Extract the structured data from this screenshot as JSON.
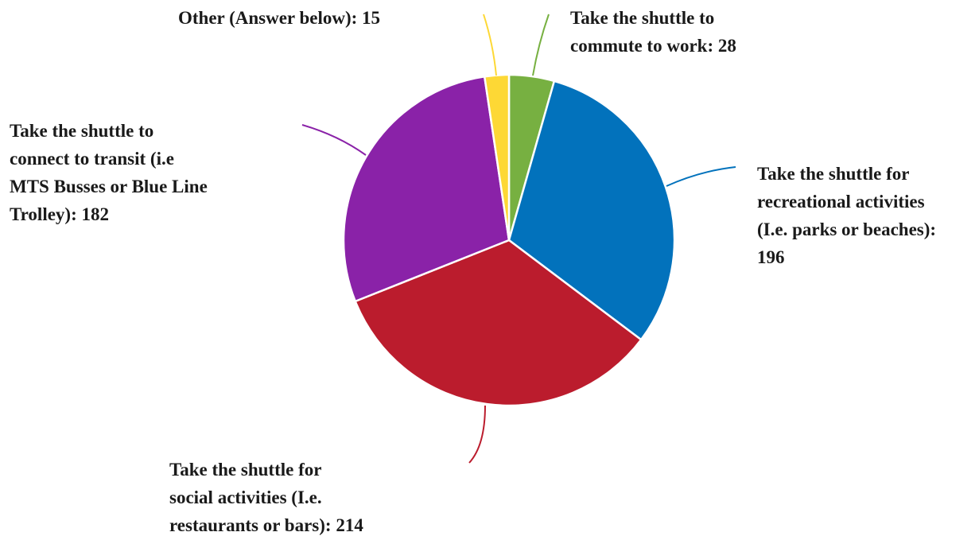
{
  "chart_data": {
    "type": "pie",
    "slices": [
      {
        "label_lines": [
          "Take the shuttle to",
          "commute to work: 28"
        ],
        "value": 28,
        "color": "#77b041"
      },
      {
        "label_lines": [
          "Take the shuttle for",
          "recreational activities",
          "(I.e. parks or beaches):",
          "196"
        ],
        "value": 196,
        "color": "#0272bc"
      },
      {
        "label_lines": [
          "Take the shuttle for",
          "social activities (I.e.",
          "restaurants or bars): 214"
        ],
        "value": 214,
        "color": "#bb1c2d"
      },
      {
        "label_lines": [
          "Take the shuttle to",
          "connect to transit (i.e",
          "MTS Busses or Blue Line",
          "Trolley): 182"
        ],
        "value": 182,
        "color": "#8a22a8"
      },
      {
        "label_lines": [
          "Other (Answer below): 15"
        ],
        "value": 15,
        "color": "#fdd835"
      }
    ]
  }
}
